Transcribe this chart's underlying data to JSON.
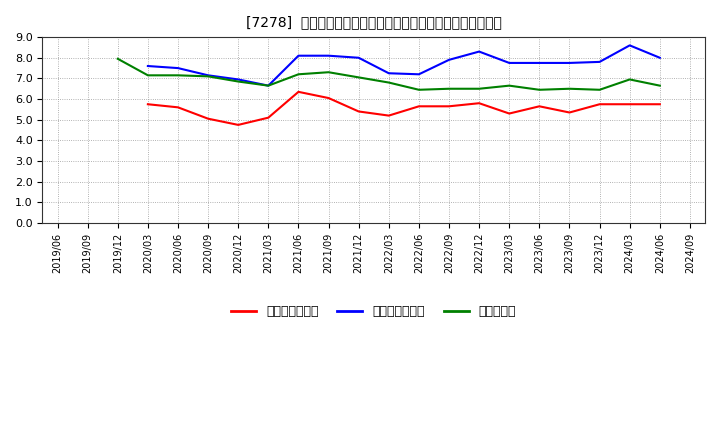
{
  "title": "[7278]  売上債権回転率、買入債務回転率、在庫回転率の推移",
  "ylim": [
    0.0,
    9.0
  ],
  "yticks": [
    0.0,
    1.0,
    2.0,
    3.0,
    4.0,
    5.0,
    6.0,
    7.0,
    8.0,
    9.0
  ],
  "background_color": "#ffffff",
  "plot_bg_color": "#ffffff",
  "grid_color": "#999999",
  "x_labels": [
    "2019/06",
    "2019/09",
    "2019/12",
    "2020/03",
    "2020/06",
    "2020/09",
    "2020/12",
    "2021/03",
    "2021/06",
    "2021/09",
    "2021/12",
    "2022/03",
    "2022/06",
    "2022/09",
    "2022/12",
    "2023/03",
    "2023/06",
    "2023/09",
    "2023/12",
    "2024/03",
    "2024/06",
    "2024/09"
  ],
  "series_order": [
    "売上債権回転率",
    "買入債務回転率",
    "在庫回転率"
  ],
  "series": {
    "売上債権回転率": {
      "color": "#ff0000",
      "values": [
        null,
        null,
        null,
        5.75,
        5.6,
        5.05,
        4.75,
        5.1,
        6.35,
        6.05,
        5.4,
        5.2,
        5.65,
        5.65,
        5.8,
        5.3,
        5.65,
        5.35,
        5.75,
        5.75,
        5.75,
        null
      ]
    },
    "買入債務回転率": {
      "color": "#0000ff",
      "values": [
        null,
        null,
        null,
        7.6,
        7.5,
        7.15,
        6.95,
        6.65,
        8.1,
        8.1,
        8.0,
        7.25,
        7.2,
        7.9,
        8.3,
        7.75,
        7.75,
        7.75,
        7.8,
        8.6,
        8.0,
        null
      ]
    },
    "在庫回転率": {
      "color": "#008000",
      "values": [
        null,
        null,
        7.95,
        7.15,
        7.15,
        7.1,
        6.85,
        6.65,
        7.2,
        7.3,
        7.05,
        6.8,
        6.45,
        6.5,
        6.5,
        6.65,
        6.45,
        6.5,
        6.45,
        6.95,
        6.65,
        null
      ]
    }
  },
  "legend_labels": [
    "売上債権回転率",
    "買入債務回転率",
    "在庫回転率"
  ],
  "legend_colors": [
    "#ff0000",
    "#0000ff",
    "#008000"
  ]
}
